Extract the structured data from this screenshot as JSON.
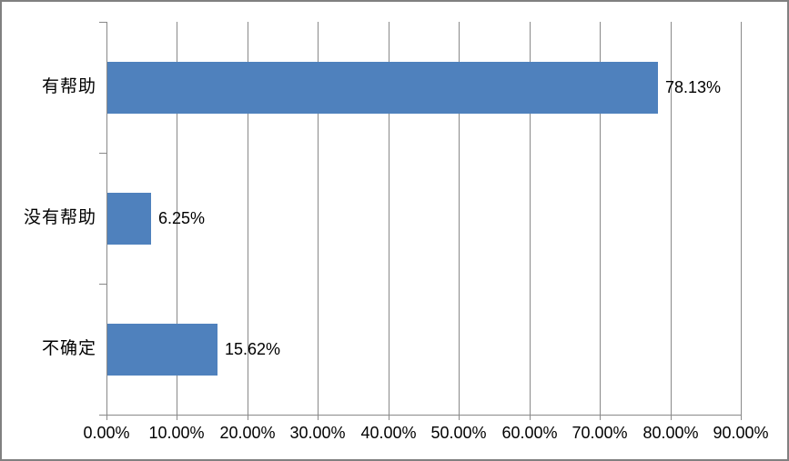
{
  "chart_data": {
    "type": "bar",
    "orientation": "horizontal",
    "title": "",
    "categories": [
      "有帮助",
      "没有帮助",
      "不确定"
    ],
    "values": [
      78.13,
      6.25,
      15.62
    ],
    "data_labels": [
      "78.13%",
      "6.25%",
      "15.62%"
    ],
    "x_ticks": [
      {
        "value": 0,
        "label": "0.00%"
      },
      {
        "value": 10,
        "label": "10.00%"
      },
      {
        "value": 20,
        "label": "20.00%"
      },
      {
        "value": 30,
        "label": "30.00%"
      },
      {
        "value": 40,
        "label": "40.00%"
      },
      {
        "value": 50,
        "label": "50.00%"
      },
      {
        "value": 60,
        "label": "60.00%"
      },
      {
        "value": 70,
        "label": "70.00%"
      },
      {
        "value": 80,
        "label": "80.00%"
      },
      {
        "value": 90,
        "label": "90.00%"
      }
    ],
    "xlim": [
      0,
      90
    ],
    "grid": true,
    "legend": "none",
    "colors": {
      "bar": "#4F81BD",
      "gridline": "#898989",
      "axis": "#898989",
      "text": "#000000",
      "frame_border": "#808080",
      "background": "#FFFFFF"
    }
  }
}
